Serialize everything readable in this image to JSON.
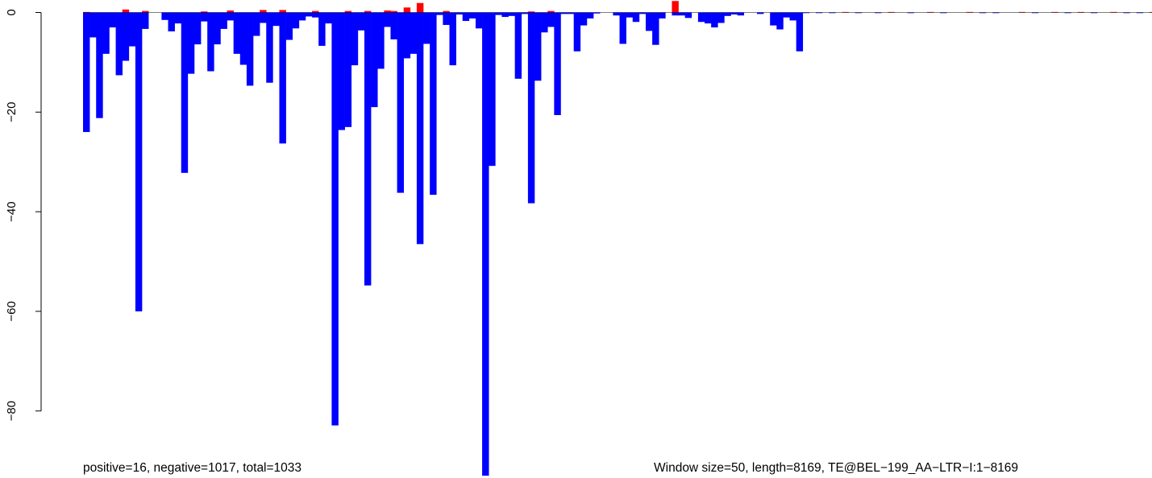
{
  "chart_data": {
    "type": "bar",
    "y_ticks": [
      0,
      -20,
      -40,
      -60,
      -80
    ],
    "ylim": [
      -93,
      2
    ],
    "xlim": [
      0,
      8169
    ],
    "grid": false,
    "colors": {
      "positive": "#ff0000",
      "negative": "#0000ff",
      "baseline": "#000000"
    },
    "bin_width": 50,
    "bars": [
      [
        0,
        -24.0
      ],
      [
        50,
        -5.0
      ],
      [
        100,
        -21.2
      ],
      [
        150,
        -8.3
      ],
      [
        200,
        -3.0
      ],
      [
        250,
        -12.6
      ],
      [
        300,
        -9.7
      ],
      [
        350,
        -6.8
      ],
      [
        400,
        -60.0
      ],
      [
        450,
        -3.3
      ],
      [
        600,
        -1.5
      ],
      [
        650,
        -3.8
      ],
      [
        700,
        -2.2
      ],
      [
        750,
        -32.2
      ],
      [
        800,
        -12.3
      ],
      [
        850,
        -6.4
      ],
      [
        900,
        -1.8
      ],
      [
        950,
        -11.8
      ],
      [
        1000,
        -6.4
      ],
      [
        1050,
        -3.3
      ],
      [
        1100,
        -1.6
      ],
      [
        1150,
        -8.3
      ],
      [
        1200,
        -10.5
      ],
      [
        1250,
        -14.7
      ],
      [
        1300,
        -4.7
      ],
      [
        1350,
        -2.1
      ],
      [
        1400,
        -14.1
      ],
      [
        1450,
        -2.7
      ],
      [
        1500,
        -26.3
      ],
      [
        1550,
        -5.5
      ],
      [
        1600,
        -3.2
      ],
      [
        1650,
        -1.6
      ],
      [
        1700,
        -0.8
      ],
      [
        1750,
        -1.0
      ],
      [
        1800,
        -6.7
      ],
      [
        1850,
        -2.2
      ],
      [
        1900,
        -82.9
      ],
      [
        1950,
        -23.6
      ],
      [
        2000,
        -23.0
      ],
      [
        2050,
        -10.6
      ],
      [
        2100,
        -3.6
      ],
      [
        2150,
        -54.8
      ],
      [
        2200,
        -19.0
      ],
      [
        2250,
        -11.3
      ],
      [
        2300,
        -2.9
      ],
      [
        2350,
        -5.4
      ],
      [
        2400,
        -36.2
      ],
      [
        2450,
        -9.2
      ],
      [
        2500,
        -8.3
      ],
      [
        2550,
        -46.5
      ],
      [
        2600,
        -6.3
      ],
      [
        2650,
        -36.6
      ],
      [
        2700,
        -0.5
      ],
      [
        2750,
        -2.5
      ],
      [
        2800,
        -10.6
      ],
      [
        2850,
        -0.4
      ],
      [
        2900,
        -1.7
      ],
      [
        2950,
        -1.2
      ],
      [
        3000,
        -3.2
      ],
      [
        3050,
        -93.0
      ],
      [
        3100,
        -30.8
      ],
      [
        3150,
        -0.5
      ],
      [
        3200,
        -0.9
      ],
      [
        3250,
        -0.7
      ],
      [
        3300,
        -13.3
      ],
      [
        3350,
        -0.3
      ],
      [
        3400,
        -38.3
      ],
      [
        3450,
        -13.7
      ],
      [
        3500,
        -4.0
      ],
      [
        3550,
        -2.9
      ],
      [
        3600,
        -20.6
      ],
      [
        3650,
        -0.3
      ],
      [
        3700,
        -0.3
      ],
      [
        3750,
        -7.8
      ],
      [
        3800,
        -2.6
      ],
      [
        3850,
        -1.2
      ],
      [
        3900,
        -0.2
      ],
      [
        4050,
        -0.6
      ],
      [
        4100,
        -6.3
      ],
      [
        4150,
        -1.0
      ],
      [
        4200,
        -1.9
      ],
      [
        4250,
        -0.3
      ],
      [
        4300,
        -3.7
      ],
      [
        4350,
        -6.5
      ],
      [
        4400,
        -1.2
      ],
      [
        4500,
        -0.6
      ],
      [
        4550,
        -0.6
      ],
      [
        4600,
        -1.1
      ],
      [
        4700,
        -1.9
      ],
      [
        4750,
        -2.2
      ],
      [
        4800,
        -3.0
      ],
      [
        4850,
        -2.1
      ],
      [
        4900,
        -0.7
      ],
      [
        4950,
        -0.4
      ],
      [
        5000,
        -0.6
      ],
      [
        5150,
        -0.3
      ],
      [
        5250,
        -2.6
      ],
      [
        5300,
        -3.4
      ],
      [
        5350,
        -1.0
      ],
      [
        5400,
        -1.6
      ],
      [
        5450,
        -7.8
      ],
      [
        0,
        0.1
      ],
      [
        300,
        0.6
      ],
      [
        450,
        0.3
      ],
      [
        900,
        0.2
      ],
      [
        1100,
        0.4
      ],
      [
        1350,
        0.5
      ],
      [
        1500,
        0.5
      ],
      [
        1750,
        0.3
      ],
      [
        2000,
        0.3
      ],
      [
        2150,
        0.3
      ],
      [
        2300,
        0.4
      ],
      [
        2350,
        0.3
      ],
      [
        2450,
        1.0
      ],
      [
        2550,
        1.9
      ],
      [
        2750,
        0.3
      ],
      [
        3400,
        0.2
      ],
      [
        3550,
        0.3
      ],
      [
        4500,
        2.3
      ],
      [
        5800,
        0.1
      ],
      [
        6150,
        0.1
      ],
      [
        6450,
        0.1
      ],
      [
        6750,
        0.1
      ],
      [
        7150,
        0.1
      ],
      [
        7400,
        0.1
      ],
      [
        7600,
        0.1
      ],
      [
        7850,
        0.1
      ],
      [
        8150,
        0.1
      ],
      [
        5500,
        -0.1
      ],
      [
        5600,
        -0.1
      ],
      [
        5700,
        -0.1
      ],
      [
        5900,
        -0.1
      ],
      [
        6050,
        -0.1
      ],
      [
        6300,
        -0.1
      ],
      [
        6550,
        -0.1
      ],
      [
        6850,
        -0.1
      ],
      [
        6950,
        -0.1
      ],
      [
        7250,
        -0.1
      ],
      [
        7500,
        -0.1
      ],
      [
        7700,
        -0.1
      ],
      [
        7950,
        -0.1
      ],
      [
        8050,
        -0.1
      ]
    ]
  },
  "footer": {
    "left_text": "positive=16, negative=1017, total=1033",
    "right_text": "Window size=50, length=8169, TE@BEL−199_AA−LTR−I:1−8169"
  }
}
